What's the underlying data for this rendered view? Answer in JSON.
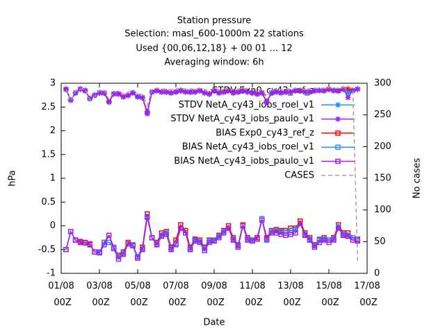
{
  "chart_data": {
    "type": "line",
    "title": "Station pressure",
    "subtitle": [
      "Selection: masl_600-1000m     22 stations",
      "Used {00,06,12,18} + 00 01 ... 12",
      "Averaging window:  6h"
    ],
    "x_label": "Date",
    "y_label": "hPa",
    "y2_label": "No cases",
    "xlim": [
      "01/08 00Z",
      "17/08 00Z"
    ],
    "xticks": [
      "01/08 00Z",
      "03/08 00Z",
      "05/08 00Z",
      "07/08 00Z",
      "09/08 00Z",
      "11/08 00Z",
      "13/08 00Z",
      "15/08 00Z",
      "17/08 00Z"
    ],
    "ylim": [
      -1,
      3
    ],
    "yticks": [
      -1,
      -0.5,
      0,
      0.5,
      1,
      1.5,
      2,
      2.5,
      3
    ],
    "y2lim": [
      0,
      300
    ],
    "y2ticks": [
      0,
      50,
      100,
      150,
      200,
      250,
      300
    ],
    "grid": false,
    "legend": "top-right",
    "x": [
      "01/08 06Z",
      "01/08 12Z",
      "01/08 18Z",
      "02/08 00Z",
      "02/08 06Z",
      "02/08 12Z",
      "02/08 18Z",
      "03/08 00Z",
      "03/08 06Z",
      "03/08 12Z",
      "03/08 18Z",
      "04/08 00Z",
      "04/08 06Z",
      "04/08 12Z",
      "04/08 18Z",
      "05/08 00Z",
      "05/08 06Z",
      "05/08 12Z",
      "05/08 18Z",
      "06/08 00Z",
      "06/08 06Z",
      "06/08 12Z",
      "06/08 18Z",
      "07/08 00Z",
      "07/08 06Z",
      "07/08 12Z",
      "07/08 18Z",
      "08/08 00Z",
      "08/08 06Z",
      "08/08 12Z",
      "08/08 18Z",
      "09/08 00Z",
      "09/08 06Z",
      "09/08 12Z",
      "09/08 18Z",
      "10/08 00Z",
      "10/08 06Z",
      "10/08 12Z",
      "10/08 18Z",
      "11/08 00Z",
      "11/08 06Z",
      "11/08 12Z",
      "11/08 18Z",
      "12/08 00Z",
      "12/08 06Z",
      "12/08 12Z",
      "12/08 18Z",
      "13/08 00Z",
      "13/08 06Z",
      "13/08 12Z",
      "13/08 18Z",
      "14/08 00Z",
      "14/08 06Z",
      "14/08 12Z",
      "14/08 18Z",
      "15/08 00Z",
      "15/08 06Z",
      "15/08 12Z",
      "15/08 18Z",
      "16/08 00Z",
      "16/08 06Z",
      "16/08 12Z"
    ],
    "series": [
      {
        "name": "STDV Exp0_cy43_ref_z",
        "color": "#ff0000",
        "marker": "star",
        "values": [
          2.88,
          2.65,
          2.8,
          2.88,
          2.85,
          2.68,
          2.75,
          2.8,
          2.8,
          2.62,
          2.78,
          2.78,
          2.72,
          2.75,
          2.8,
          2.72,
          2.7,
          2.4,
          2.82,
          2.85,
          2.82,
          2.82,
          2.8,
          2.82,
          2.85,
          2.82,
          2.82,
          2.82,
          2.85,
          2.8,
          2.78,
          2.85,
          2.8,
          2.82,
          2.85,
          2.8,
          2.82,
          2.85,
          2.82,
          2.8,
          2.78,
          2.8,
          2.62,
          2.8,
          2.82,
          2.8,
          2.82,
          2.82,
          2.85,
          2.85,
          2.82,
          2.82,
          2.85,
          2.85,
          2.85,
          2.88,
          2.85,
          2.85,
          2.88,
          2.88,
          2.85,
          2.88
        ]
      },
      {
        "name": "STDV NetA_cy43_iobs_roel_v1",
        "color": "#1e90ff",
        "marker": "star",
        "values": [
          2.87,
          2.64,
          2.79,
          2.87,
          2.84,
          2.67,
          2.74,
          2.79,
          2.79,
          2.61,
          2.77,
          2.77,
          2.71,
          2.74,
          2.79,
          2.71,
          2.69,
          2.38,
          2.81,
          2.84,
          2.81,
          2.81,
          2.79,
          2.81,
          2.84,
          2.81,
          2.81,
          2.81,
          2.84,
          2.79,
          2.77,
          2.84,
          2.79,
          2.81,
          2.84,
          2.79,
          2.81,
          2.84,
          2.81,
          2.79,
          2.77,
          2.79,
          2.61,
          2.79,
          2.81,
          2.79,
          2.81,
          2.81,
          2.84,
          2.84,
          2.81,
          2.81,
          2.84,
          2.84,
          2.84,
          2.87,
          2.84,
          2.84,
          2.87,
          2.8,
          2.84,
          2.87
        ]
      },
      {
        "name": "STDV NetA_cy43_iobs_paulo_v1",
        "color": "#a020f0",
        "marker": "star",
        "values": [
          2.87,
          2.65,
          2.8,
          2.88,
          2.84,
          2.68,
          2.75,
          2.8,
          2.79,
          2.6,
          2.78,
          2.77,
          2.72,
          2.74,
          2.8,
          2.72,
          2.7,
          2.36,
          2.82,
          2.84,
          2.82,
          2.81,
          2.8,
          2.82,
          2.84,
          2.82,
          2.81,
          2.82,
          2.84,
          2.8,
          2.77,
          2.84,
          2.8,
          2.81,
          2.84,
          2.8,
          2.81,
          2.84,
          2.82,
          2.8,
          2.77,
          2.8,
          2.6,
          2.8,
          2.82,
          2.8,
          2.81,
          2.82,
          2.84,
          2.84,
          2.82,
          2.82,
          2.84,
          2.85,
          2.84,
          2.87,
          2.85,
          2.84,
          2.88,
          2.7,
          2.85,
          2.88
        ]
      },
      {
        "name": "BIAS Exp0_cy43_ref_z",
        "color": "#ff0000",
        "marker": "square",
        "values": [
          -0.5,
          -0.12,
          -0.3,
          -0.33,
          -0.35,
          -0.38,
          -0.55,
          -0.55,
          -0.35,
          -0.2,
          -0.45,
          -0.62,
          -0.55,
          -0.35,
          -0.4,
          -0.65,
          -0.45,
          0.25,
          -0.25,
          -0.35,
          -0.15,
          -0.12,
          -0.45,
          -0.3,
          0.02,
          -0.1,
          -0.45,
          -0.28,
          -0.3,
          -0.45,
          -0.3,
          -0.3,
          -0.2,
          -0.1,
          0.0,
          -0.25,
          -0.4,
          0.02,
          -0.25,
          -0.3,
          -0.25,
          0.15,
          -0.25,
          -0.1,
          -0.08,
          -0.1,
          -0.1,
          -0.05,
          -0.05,
          0.1,
          -0.15,
          -0.25,
          -0.4,
          -0.3,
          -0.25,
          -0.3,
          -0.25,
          0.02,
          -0.15,
          -0.15,
          -0.25,
          -0.28
        ]
      },
      {
        "name": "BIAS NetA_cy43_iobs_roel_v1",
        "color": "#1e90ff",
        "marker": "square",
        "values": [
          -0.5,
          -0.12,
          -0.3,
          -0.35,
          -0.36,
          -0.4,
          -0.55,
          -0.55,
          -0.35,
          -0.35,
          -0.45,
          -0.65,
          -0.58,
          -0.38,
          -0.4,
          -0.65,
          -0.48,
          0.2,
          -0.25,
          -0.38,
          -0.2,
          -0.15,
          -0.48,
          -0.4,
          -0.05,
          -0.15,
          -0.48,
          -0.3,
          -0.33,
          -0.48,
          -0.32,
          -0.3,
          -0.22,
          -0.12,
          -0.05,
          -0.28,
          -0.42,
          0.0,
          -0.28,
          -0.3,
          -0.28,
          0.15,
          -0.3,
          -0.12,
          -0.1,
          -0.12,
          -0.15,
          -0.1,
          -0.08,
          0.05,
          -0.18,
          -0.28,
          -0.42,
          -0.28,
          -0.28,
          -0.3,
          -0.28,
          -0.02,
          -0.18,
          -0.2,
          -0.25,
          -0.3
        ]
      },
      {
        "name": "BIAS NetA_cy43_iobs_paulo_v1",
        "color": "#a020f0",
        "marker": "square",
        "values": [
          -0.5,
          -0.12,
          -0.3,
          -0.35,
          -0.36,
          -0.4,
          -0.55,
          -0.57,
          -0.4,
          -0.2,
          -0.48,
          -0.7,
          -0.6,
          -0.38,
          -0.42,
          -0.68,
          -0.5,
          0.18,
          -0.25,
          -0.4,
          -0.22,
          -0.18,
          -0.5,
          -0.38,
          -0.05,
          -0.15,
          -0.5,
          -0.32,
          -0.35,
          -0.52,
          -0.35,
          -0.32,
          -0.25,
          -0.15,
          -0.05,
          -0.3,
          -0.45,
          0.0,
          -0.3,
          -0.32,
          -0.28,
          0.12,
          -0.28,
          -0.15,
          -0.15,
          -0.18,
          -0.2,
          -0.18,
          -0.15,
          0.05,
          -0.2,
          -0.3,
          -0.45,
          -0.35,
          -0.3,
          -0.35,
          -0.3,
          -0.05,
          -0.2,
          -0.22,
          -0.3,
          -0.32
        ]
      },
      {
        "name": "CASES",
        "color": "#a0a0a0",
        "dash": true,
        "axis": "y2",
        "values": [
          290,
          272,
          288,
          291,
          290,
          274,
          280,
          289,
          289,
          274,
          286,
          288,
          283,
          286,
          289,
          284,
          282,
          265,
          290,
          292,
          291,
          291,
          290,
          291,
          292,
          291,
          291,
          291,
          292,
          290,
          289,
          292,
          290,
          291,
          292,
          290,
          291,
          292,
          291,
          290,
          289,
          290,
          280,
          290,
          291,
          290,
          291,
          291,
          292,
          292,
          291,
          291,
          292,
          292,
          292,
          293,
          292,
          292,
          293,
          293,
          292,
          20
        ]
      }
    ]
  }
}
